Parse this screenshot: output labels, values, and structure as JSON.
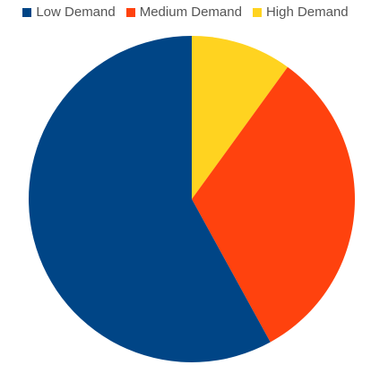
{
  "chart_data": {
    "type": "pie",
    "legend_position": "top",
    "categories": [
      "Low Demand",
      "Medium Demand",
      "High Demand"
    ],
    "values": [
      58,
      32,
      10
    ],
    "colors": [
      "#004586",
      "#ff420e",
      "#ffd320"
    ],
    "title": "",
    "start_angle": "top",
    "direction": "clockwise"
  }
}
